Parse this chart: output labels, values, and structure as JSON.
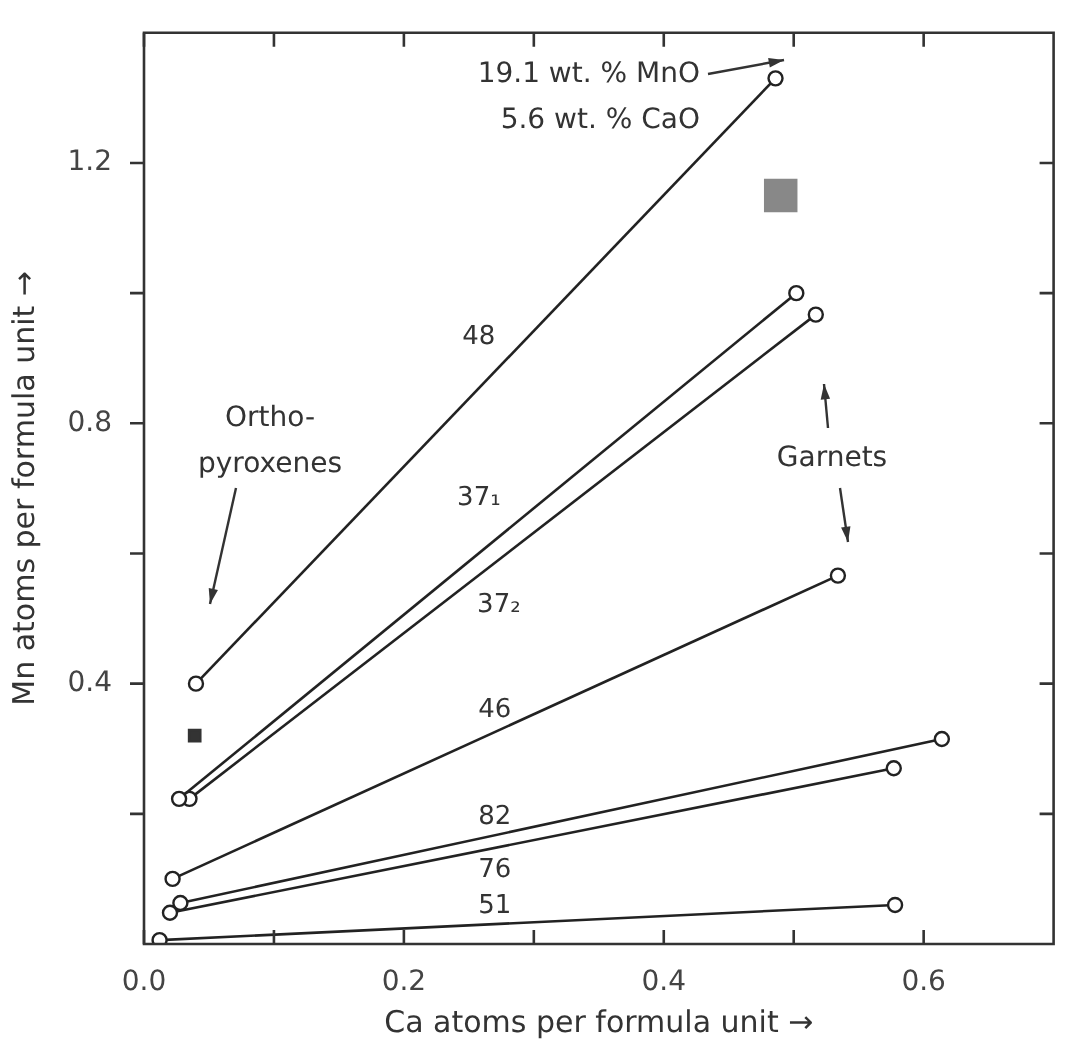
{
  "chart_data": {
    "type": "line",
    "xlabel": "Ca atoms per formula unit →",
    "ylabel": "Mn atoms per formula unit →",
    "xlim": [
      0,
      0.7
    ],
    "ylim": [
      0,
      1.4
    ],
    "xticks": [
      {
        "value": 0,
        "label": "0.0"
      },
      {
        "value": 0.1,
        "label": null
      },
      0.2,
      {
        "value": 0.3,
        "label": null
      },
      0.4,
      {
        "value": 0.5,
        "label": null
      },
      0.6
    ],
    "yticks": [
      {
        "value": 0.2,
        "label": null
      },
      0.4,
      {
        "value": 0.6,
        "label": null
      },
      0.8,
      {
        "value": 1.0,
        "label": null
      },
      1.2
    ],
    "marker": "circle",
    "line_style": "solid",
    "grid": false,
    "legend": false,
    "series": [
      {
        "name": "48",
        "color": "#222222",
        "x": [
          0.04,
          0.486
        ],
        "values": [
          0.4,
          1.33
        ]
      },
      {
        "name": "37₁",
        "color": "#222222",
        "x": [
          0.027,
          0.502
        ],
        "values": [
          0.223,
          1.0
        ]
      },
      {
        "name": "37₂",
        "color": "#222222",
        "x": [
          0.035,
          0.517
        ],
        "values": [
          0.223,
          0.967
        ]
      },
      {
        "name": "46",
        "color": "#222222",
        "x": [
          0.022,
          0.534
        ],
        "values": [
          0.1,
          0.566
        ]
      },
      {
        "name": "82",
        "color": "#222222",
        "x": [
          0.028,
          0.614
        ],
        "values": [
          0.063,
          0.315
        ]
      },
      {
        "name": "76",
        "color": "#222222",
        "x": [
          0.02,
          0.577
        ],
        "values": [
          0.048,
          0.27
        ]
      },
      {
        "name": "51",
        "color": "#222222",
        "x": [
          0.012,
          0.578
        ],
        "values": [
          0.006,
          0.06
        ]
      },
      {
        "type": "scatter",
        "marker": "square",
        "color": "#333333",
        "x": [
          0.039
        ],
        "values": [
          0.32
        ]
      },
      {
        "type": "scatter",
        "marker": "square",
        "color": "#888888",
        "x": [
          0.49
        ],
        "values": [
          1.15
        ]
      }
    ],
    "annotations": [
      "19.1 wt. % MnO\n5.6 wt. % CaO",
      "Ortho-\npyroxenes",
      "Garnets"
    ]
  }
}
